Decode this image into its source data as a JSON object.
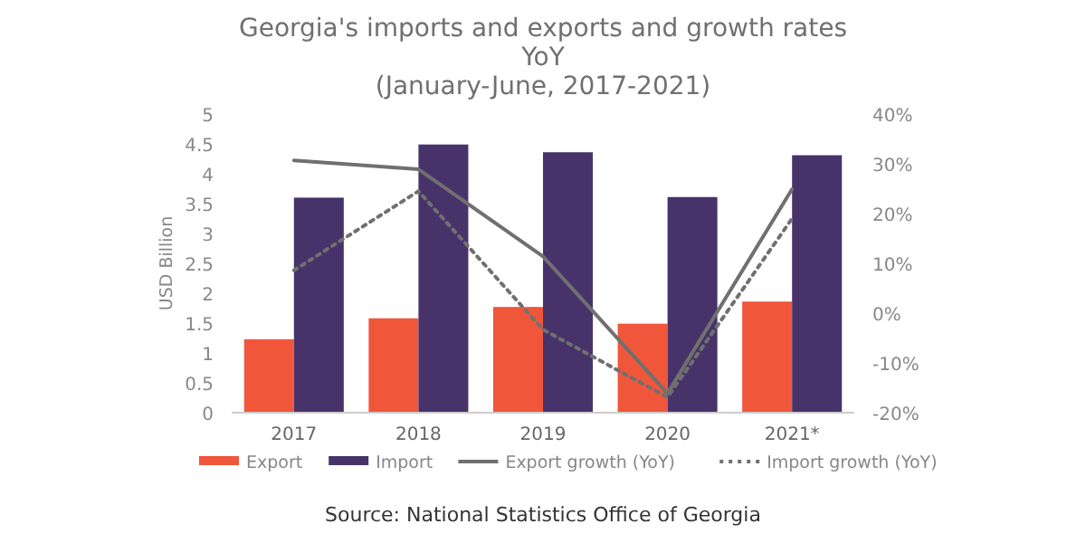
{
  "chart_data": {
    "type": "bar",
    "title": "Georgia's imports and exports and growth rates\nYoY\n(January-June, 2017-2021)",
    "ylabel": "USD Billion",
    "categories": [
      "2017",
      "2018",
      "2019",
      "2020",
      "2021*"
    ],
    "series": [
      {
        "name": "Export",
        "color": "#f0563a",
        "values": [
          1.23,
          1.58,
          1.77,
          1.49,
          1.86
        ]
      },
      {
        "name": "Import",
        "color": "#47336a",
        "values": [
          3.6,
          4.49,
          4.36,
          3.61,
          4.31
        ]
      },
      {
        "name": "Export growth (YoY)",
        "type": "line",
        "axis": "y2",
        "color": "#707070",
        "line_style": "solid",
        "values": [
          30.7,
          28.9,
          11.4,
          -16.1,
          24.9
        ]
      },
      {
        "name": "Import growth (YoY)",
        "type": "line",
        "axis": "y2",
        "color": "#707070",
        "line_style": "dotted",
        "values": [
          8.6,
          24.5,
          -3.3,
          -16.9,
          19.0
        ]
      }
    ],
    "ylim": [
      0,
      5
    ],
    "yticks": [
      0,
      0.5,
      1,
      1.5,
      2,
      2.5,
      3,
      3.5,
      4,
      4.5,
      5
    ],
    "y2lim": [
      -20,
      40
    ],
    "y2ticks": [
      {
        "value": -20,
        "label": "-20%"
      },
      {
        "value": -10,
        "label": "-10%"
      },
      {
        "value": 0,
        "label": "0%"
      },
      {
        "value": 10,
        "label": "10%"
      },
      {
        "value": 20,
        "label": "20%"
      },
      {
        "value": 30,
        "label": "30%"
      },
      {
        "value": 40,
        "label": "40%"
      }
    ],
    "legend": "bottom",
    "grid": false,
    "annotations": [
      "Source: National Statistics Office of Georgia"
    ]
  }
}
